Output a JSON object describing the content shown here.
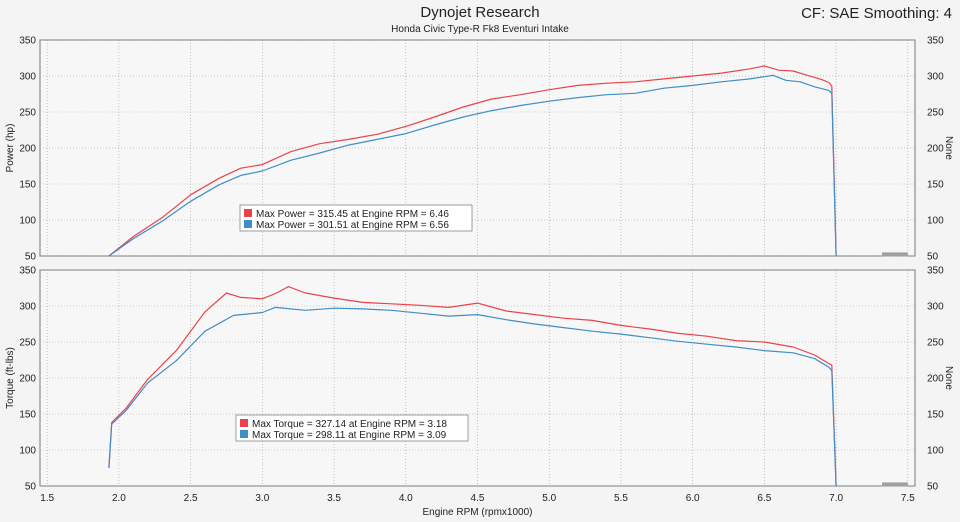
{
  "header": {
    "title": "Dynojet Research",
    "subtitle": "Honda Civic Type-R Fk8 Eventuri Intake",
    "cf": "CF: SAE Smoothing: 4"
  },
  "colors": {
    "run1": "#e8434a",
    "run2": "#3f8ec8",
    "plot_bg": "#f7f7f7",
    "grid": "#9a9a9a"
  },
  "chart_data": [
    {
      "type": "line",
      "name": "power-plot",
      "ylabel": "Power (hp)",
      "y2label": "None",
      "ylim": [
        50,
        350
      ],
      "yticks": [
        50,
        100,
        150,
        200,
        250,
        300,
        350
      ],
      "xlim": [
        1.45,
        7.55
      ],
      "grid": true,
      "legend": [
        "Max Power = 315.45 at Engine RPM = 6.46",
        "Max Power = 301.51 at Engine RPM = 6.56"
      ],
      "series": [
        {
          "color": "#e8434a",
          "x": [
            1.93,
            2.1,
            2.3,
            2.5,
            2.7,
            2.85,
            3.0,
            3.2,
            3.4,
            3.6,
            3.8,
            4.0,
            4.2,
            4.4,
            4.6,
            4.8,
            5.0,
            5.2,
            5.4,
            5.6,
            5.8,
            6.0,
            6.2,
            6.4,
            6.5,
            6.6,
            6.7,
            6.8,
            6.9,
            6.95,
            6.97,
            7.0
          ],
          "y": [
            50,
            77,
            103,
            135,
            158,
            172,
            177,
            195,
            206,
            212,
            219,
            230,
            243,
            257,
            268,
            274,
            281,
            287,
            290,
            292,
            296,
            300,
            304,
            310,
            314,
            308,
            307,
            301,
            295,
            291,
            286,
            50
          ]
        },
        {
          "color": "#3f8ec8",
          "x": [
            1.93,
            2.1,
            2.3,
            2.5,
            2.7,
            2.85,
            3.0,
            3.2,
            3.4,
            3.6,
            3.8,
            4.0,
            4.2,
            4.4,
            4.6,
            4.8,
            5.0,
            5.2,
            5.4,
            5.6,
            5.8,
            6.0,
            6.2,
            6.4,
            6.56,
            6.65,
            6.75,
            6.85,
            6.95,
            6.97,
            7.0
          ],
          "y": [
            50,
            74,
            98,
            126,
            149,
            162,
            168,
            183,
            193,
            204,
            212,
            220,
            232,
            243,
            252,
            259,
            265,
            270,
            274,
            276,
            283,
            287,
            292,
            296,
            301,
            294,
            292,
            285,
            280,
            276,
            50
          ]
        }
      ]
    },
    {
      "type": "line",
      "name": "torque-plot",
      "ylabel": "Torque (ft-lbs)",
      "y2label": "None",
      "xlabel": "Engine RPM (rpmx1000)",
      "ylim": [
        50,
        350
      ],
      "yticks": [
        50,
        100,
        150,
        200,
        250,
        300,
        350
      ],
      "xlim": [
        1.45,
        7.55
      ],
      "xticks": [
        "1.5",
        "2.0",
        "2.5",
        "3.0",
        "3.5",
        "4.0",
        "4.5",
        "5.0",
        "5.5",
        "6.0",
        "6.5",
        "7.0",
        "7.5"
      ],
      "grid": true,
      "legend": [
        "Max Torque = 327.14 at Engine RPM = 3.18",
        "Max Torque = 298.11 at Engine RPM = 3.09"
      ],
      "series": [
        {
          "color": "#e8434a",
          "x": [
            1.93,
            1.95,
            2.05,
            2.2,
            2.4,
            2.6,
            2.75,
            2.85,
            3.0,
            3.1,
            3.18,
            3.3,
            3.5,
            3.7,
            3.9,
            4.1,
            4.3,
            4.5,
            4.7,
            4.9,
            5.1,
            5.3,
            5.5,
            5.7,
            5.9,
            6.1,
            6.3,
            6.5,
            6.7,
            6.85,
            6.95,
            6.97,
            7.0
          ],
          "y": [
            75,
            138,
            158,
            198,
            238,
            292,
            318,
            312,
            310,
            318,
            327,
            318,
            311,
            305,
            303,
            301,
            298,
            304,
            293,
            288,
            283,
            280,
            273,
            268,
            262,
            258,
            252,
            250,
            243,
            232,
            220,
            218,
            50
          ]
        },
        {
          "color": "#3f8ec8",
          "x": [
            1.93,
            1.95,
            2.05,
            2.2,
            2.4,
            2.6,
            2.8,
            3.0,
            3.09,
            3.3,
            3.5,
            3.7,
            3.9,
            4.1,
            4.3,
            4.5,
            4.7,
            4.9,
            5.1,
            5.3,
            5.5,
            5.7,
            5.9,
            6.1,
            6.3,
            6.5,
            6.7,
            6.85,
            6.95,
            6.97,
            7.0
          ],
          "y": [
            75,
            136,
            155,
            193,
            224,
            265,
            287,
            291,
            298,
            294,
            297,
            296,
            294,
            290,
            286,
            288,
            281,
            275,
            270,
            265,
            261,
            256,
            251,
            247,
            243,
            238,
            235,
            227,
            215,
            210,
            50
          ]
        }
      ]
    }
  ]
}
